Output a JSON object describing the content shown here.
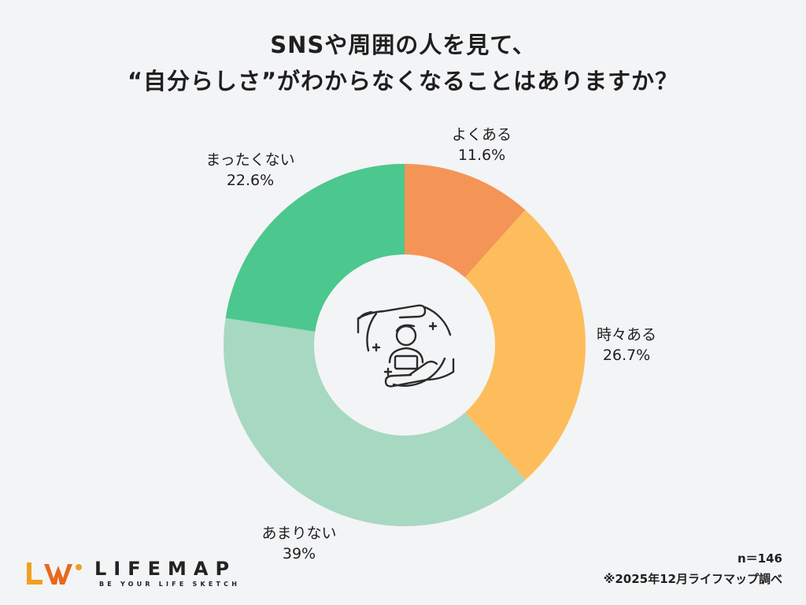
{
  "title": {
    "line1": "SNSや周囲の人を見て、",
    "line2": "“自分らしさ”がわからなくなることはありますか？"
  },
  "chart_data": {
    "type": "pie",
    "donut": true,
    "categories": [
      "よくある",
      "時々ある",
      "あまりない",
      "まったくない"
    ],
    "values": [
      11.6,
      26.7,
      39,
      22.6
    ],
    "value_labels": [
      "11.6%",
      "26.7%",
      "39%",
      "22.6%"
    ],
    "colors": [
      "#f49557",
      "#fdbd5c",
      "#a7d8c2",
      "#4cc78e"
    ],
    "start": "12 o'clock",
    "direction": "clockwise",
    "center_icon": "person-in-hands-icon"
  },
  "footer": {
    "sample": "n＝146",
    "source": "※2025年12月ライフマップ調べ"
  },
  "logo": {
    "wordmark": "LIFEMAP",
    "tagline": "BE YOUR LIFE SKETCH",
    "icon": "lw-logo-icon",
    "colors": [
      "#f0a020",
      "#e8681c"
    ]
  }
}
